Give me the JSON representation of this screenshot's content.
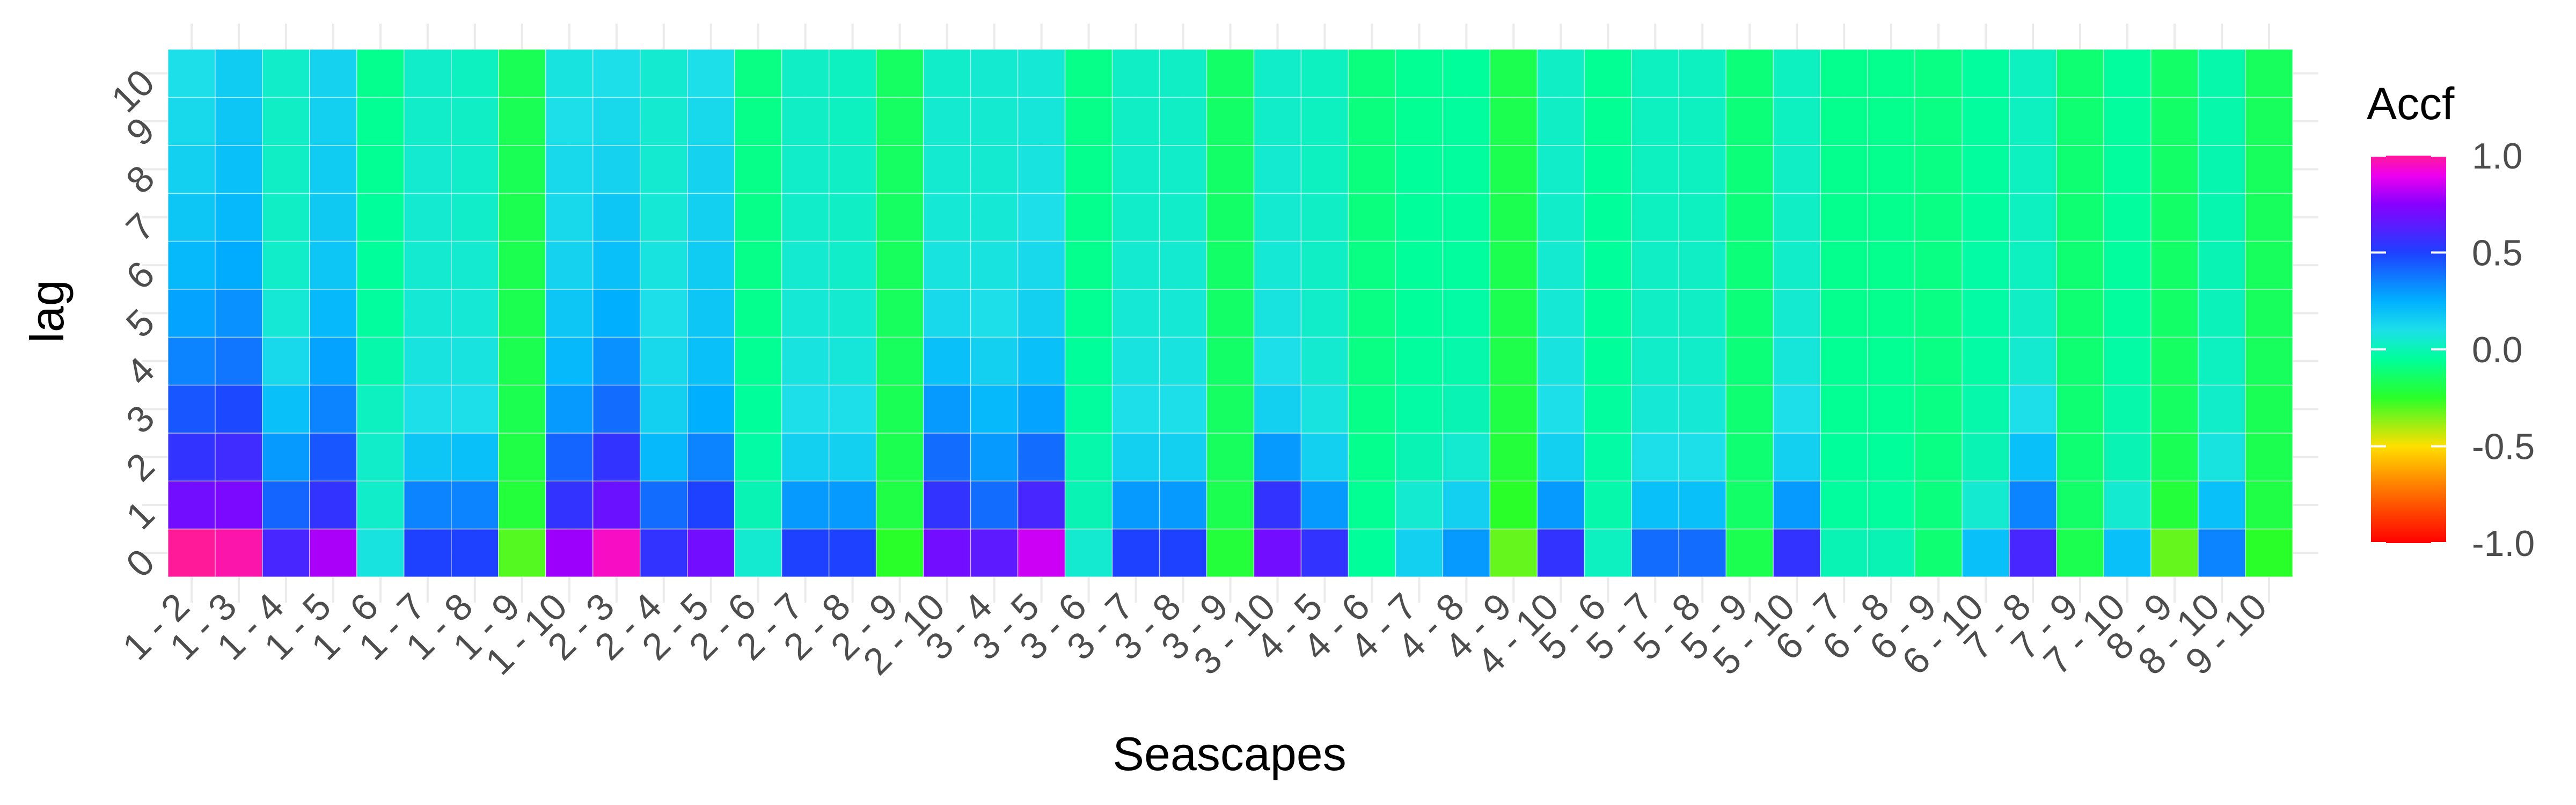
{
  "chart_data": {
    "type": "heatmap",
    "xlabel": "Seascapes",
    "ylabel": "lag",
    "categories": [
      "1 - 2",
      "1 - 3",
      "1 - 4",
      "1 - 5",
      "1 - 6",
      "1 - 7",
      "1 - 8",
      "1 - 9",
      "1 - 10",
      "2 - 3",
      "2 - 4",
      "2 - 5",
      "2 - 6",
      "2 - 7",
      "2 - 8",
      "2 - 9",
      "2 - 10",
      "3 - 4",
      "3 - 5",
      "3 - 6",
      "3 - 7",
      "3 - 8",
      "3 - 9",
      "3 - 10",
      "4 - 5",
      "4 - 6",
      "4 - 7",
      "4 - 8",
      "4 - 9",
      "4 - 10",
      "5 - 6",
      "5 - 7",
      "5 - 8",
      "5 - 9",
      "5 - 10",
      "6 - 7",
      "6 - 8",
      "6 - 9",
      "6 - 10",
      "7 - 8",
      "7 - 9",
      "7 - 10",
      "8 - 9",
      "8 - 10",
      "9 - 10"
    ],
    "lags": [
      0,
      1,
      2,
      3,
      4,
      5,
      6,
      7,
      8,
      9,
      10
    ],
    "values": [
      [
        1.0,
        0.7,
        0.55,
        0.45,
        0.35,
        0.28,
        0.22,
        0.18,
        0.15,
        0.12,
        0.1
      ],
      [
        0.98,
        0.72,
        0.58,
        0.48,
        0.38,
        0.32,
        0.26,
        0.22,
        0.2,
        0.18,
        0.16
      ],
      [
        0.6,
        0.42,
        0.3,
        0.2,
        0.12,
        0.06,
        0.04,
        0.03,
        0.03,
        0.03,
        0.04
      ],
      [
        0.8,
        0.55,
        0.45,
        0.35,
        0.28,
        0.22,
        0.18,
        0.17,
        0.16,
        0.15,
        0.14
      ],
      [
        0.08,
        0.04,
        0.04,
        0.02,
        -0.02,
        -0.04,
        -0.05,
        -0.05,
        -0.06,
        -0.06,
        -0.07
      ],
      [
        0.5,
        0.35,
        0.18,
        0.1,
        0.08,
        0.06,
        0.05,
        0.05,
        0.05,
        0.04,
        0.04
      ],
      [
        0.5,
        0.35,
        0.2,
        0.1,
        0.08,
        0.06,
        0.05,
        0.04,
        0.04,
        0.03,
        0.02
      ],
      [
        -0.3,
        -0.22,
        -0.2,
        -0.18,
        -0.18,
        -0.18,
        -0.18,
        -0.18,
        -0.17,
        -0.17,
        -0.17
      ],
      [
        0.78,
        0.55,
        0.42,
        0.3,
        0.22,
        0.18,
        0.14,
        0.12,
        0.12,
        0.1,
        0.08
      ],
      [
        0.95,
        0.68,
        0.55,
        0.4,
        0.32,
        0.25,
        0.2,
        0.18,
        0.14,
        0.12,
        0.1
      ],
      [
        0.55,
        0.4,
        0.22,
        0.15,
        0.12,
        0.1,
        0.08,
        0.06,
        0.05,
        0.05,
        0.05
      ],
      [
        0.7,
        0.5,
        0.35,
        0.25,
        0.2,
        0.18,
        0.16,
        0.15,
        0.14,
        0.12,
        0.1
      ],
      [
        0.05,
        0.0,
        -0.03,
        -0.05,
        -0.06,
        -0.07,
        -0.08,
        -0.08,
        -0.08,
        -0.08,
        -0.09
      ],
      [
        0.5,
        0.3,
        0.15,
        0.1,
        0.08,
        0.06,
        0.05,
        0.04,
        0.04,
        0.03,
        0.03
      ],
      [
        0.5,
        0.3,
        0.15,
        0.1,
        0.07,
        0.05,
        0.04,
        0.03,
        0.03,
        0.02,
        0.02
      ],
      [
        -0.25,
        -0.2,
        -0.18,
        -0.17,
        -0.16,
        -0.16,
        -0.16,
        -0.15,
        -0.15,
        -0.15,
        -0.15
      ],
      [
        0.7,
        0.55,
        0.4,
        0.3,
        0.2,
        0.12,
        0.08,
        0.06,
        0.05,
        0.05,
        0.04
      ],
      [
        0.65,
        0.4,
        0.3,
        0.22,
        0.15,
        0.1,
        0.08,
        0.06,
        0.05,
        0.05,
        0.05
      ],
      [
        0.85,
        0.6,
        0.4,
        0.28,
        0.2,
        0.15,
        0.12,
        0.1,
        0.08,
        0.07,
        0.06
      ],
      [
        0.05,
        0.0,
        -0.02,
        -0.04,
        -0.05,
        -0.06,
        -0.07,
        -0.07,
        -0.07,
        -0.08,
        -0.08
      ],
      [
        0.5,
        0.3,
        0.15,
        0.1,
        0.08,
        0.06,
        0.05,
        0.04,
        0.04,
        0.03,
        0.03
      ],
      [
        0.5,
        0.3,
        0.15,
        0.1,
        0.08,
        0.06,
        0.05,
        0.04,
        0.04,
        0.03,
        0.03
      ],
      [
        -0.22,
        -0.18,
        -0.16,
        -0.15,
        -0.14,
        -0.14,
        -0.14,
        -0.14,
        -0.14,
        -0.14,
        -0.14
      ],
      [
        0.7,
        0.55,
        0.3,
        0.15,
        0.1,
        0.08,
        0.06,
        0.05,
        0.05,
        0.04,
        0.04
      ],
      [
        0.55,
        0.3,
        0.15,
        0.08,
        0.05,
        0.04,
        0.03,
        0.03,
        0.02,
        0.02,
        0.02
      ],
      [
        -0.05,
        -0.06,
        -0.07,
        -0.08,
        -0.09,
        -0.09,
        -0.09,
        -0.1,
        -0.1,
        -0.1,
        -0.1
      ],
      [
        0.15,
        0.05,
        0.0,
        -0.03,
        -0.04,
        -0.05,
        -0.05,
        -0.05,
        -0.05,
        -0.06,
        -0.06
      ],
      [
        0.3,
        0.15,
        0.05,
        0.0,
        -0.02,
        -0.03,
        -0.04,
        -0.04,
        -0.04,
        -0.04,
        -0.05
      ],
      [
        -0.32,
        -0.25,
        -0.22,
        -0.2,
        -0.19,
        -0.18,
        -0.18,
        -0.18,
        -0.18,
        -0.18,
        -0.18
      ],
      [
        0.55,
        0.3,
        0.15,
        0.1,
        0.08,
        0.06,
        0.05,
        0.04,
        0.04,
        0.03,
        0.03
      ],
      [
        0.02,
        -0.02,
        -0.03,
        -0.04,
        -0.05,
        -0.05,
        -0.05,
        -0.05,
        -0.05,
        -0.06,
        -0.06
      ],
      [
        0.4,
        0.2,
        0.1,
        0.06,
        0.04,
        0.03,
        0.03,
        0.02,
        0.02,
        0.02,
        0.02
      ],
      [
        0.4,
        0.2,
        0.1,
        0.06,
        0.04,
        0.03,
        0.03,
        0.02,
        0.02,
        0.02,
        0.02
      ],
      [
        -0.18,
        -0.14,
        -0.12,
        -0.12,
        -0.11,
        -0.11,
        -0.11,
        -0.11,
        -0.11,
        -0.11,
        -0.11
      ],
      [
        0.55,
        0.3,
        0.15,
        0.1,
        0.07,
        0.05,
        0.04,
        0.03,
        0.03,
        0.02,
        0.02
      ],
      [
        0.0,
        -0.04,
        -0.05,
        -0.06,
        -0.06,
        -0.07,
        -0.07,
        -0.07,
        -0.07,
        -0.07,
        -0.07
      ],
      [
        0.0,
        -0.04,
        -0.05,
        -0.06,
        -0.06,
        -0.07,
        -0.07,
        -0.07,
        -0.07,
        -0.07,
        -0.07
      ],
      [
        -0.12,
        -0.1,
        -0.09,
        -0.09,
        -0.09,
        -0.09,
        -0.09,
        -0.09,
        -0.09,
        -0.09,
        -0.09
      ],
      [
        0.2,
        0.05,
        0.0,
        -0.02,
        -0.03,
        -0.03,
        -0.03,
        -0.04,
        -0.04,
        -0.04,
        -0.04
      ],
      [
        0.6,
        0.35,
        0.2,
        0.1,
        0.05,
        0.03,
        0.02,
        0.02,
        0.02,
        0.02,
        0.02
      ],
      [
        -0.18,
        -0.14,
        -0.12,
        -0.12,
        -0.12,
        -0.12,
        -0.12,
        -0.12,
        -0.12,
        -0.12,
        -0.12
      ],
      [
        0.2,
        0.05,
        0.0,
        -0.02,
        -0.03,
        -0.04,
        -0.04,
        -0.04,
        -0.04,
        -0.04,
        -0.04
      ],
      [
        -0.32,
        -0.22,
        -0.17,
        -0.15,
        -0.15,
        -0.14,
        -0.14,
        -0.14,
        -0.14,
        -0.14,
        -0.14
      ],
      [
        0.35,
        0.2,
        0.08,
        0.04,
        0.02,
        0.01,
        0.0,
        -0.01,
        -0.01,
        -0.02,
        -0.02
      ],
      [
        -0.25,
        -0.2,
        -0.18,
        -0.17,
        -0.16,
        -0.16,
        -0.16,
        -0.16,
        -0.16,
        -0.16,
        -0.16
      ]
    ],
    "legend": {
      "title": "Accf",
      "ticks": [
        {
          "value": 1.0,
          "label": "1.0"
        },
        {
          "value": 0.5,
          "label": "0.5"
        },
        {
          "value": 0.0,
          "label": "0.0"
        },
        {
          "value": -0.5,
          "label": "-0.5"
        },
        {
          "value": -1.0,
          "label": "-1.0"
        }
      ],
      "range": [
        -1.0,
        1.0
      ],
      "placement": "right"
    },
    "colorscale": [
      {
        "value": -1.0,
        "color": "#ff0000"
      },
      {
        "value": -0.7,
        "color": "#ff8000"
      },
      {
        "value": -0.5,
        "color": "#ffdf00"
      },
      {
        "value": -0.25,
        "color": "#29ff29"
      },
      {
        "value": -0.05,
        "color": "#00ff9a"
      },
      {
        "value": 0.1,
        "color": "#1cdfe9"
      },
      {
        "value": 0.25,
        "color": "#00b0ff"
      },
      {
        "value": 0.5,
        "color": "#1e40ff"
      },
      {
        "value": 0.75,
        "color": "#8800ff"
      },
      {
        "value": 0.9,
        "color": "#ee00ee"
      },
      {
        "value": 1.0,
        "color": "#ff1a9a"
      }
    ],
    "grid": true
  }
}
